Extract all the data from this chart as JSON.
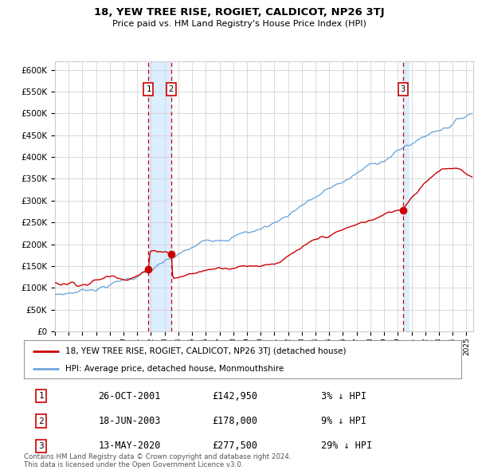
{
  "title": "18, YEW TREE RISE, ROGIET, CALDICOT, NP26 3TJ",
  "subtitle": "Price paid vs. HM Land Registry's House Price Index (HPI)",
  "ylim": [
    0,
    620000
  ],
  "yticks": [
    0,
    50000,
    100000,
    150000,
    200000,
    250000,
    300000,
    350000,
    400000,
    450000,
    500000,
    550000,
    600000
  ],
  "ytick_labels": [
    "£0",
    "£50K",
    "£100K",
    "£150K",
    "£200K",
    "£250K",
    "£300K",
    "£350K",
    "£400K",
    "£450K",
    "£500K",
    "£550K",
    "£600K"
  ],
  "hpi_color": "#6fa8dc",
  "property_color": "#cc0000",
  "sale1_date": 2001.82,
  "sale1_price": 142950,
  "sale2_date": 2003.46,
  "sale2_price": 178000,
  "sale3_date": 2020.37,
  "sale3_price": 277500,
  "legend_property": "18, YEW TREE RISE, ROGIET, CALDICOT, NP26 3TJ (detached house)",
  "legend_hpi": "HPI: Average price, detached house, Monmouthshire",
  "table_rows": [
    [
      "1",
      "26-OCT-2001",
      "£142,950",
      "3% ↓ HPI"
    ],
    [
      "2",
      "18-JUN-2003",
      "£178,000",
      "9% ↓ HPI"
    ],
    [
      "3",
      "13-MAY-2020",
      "£277,500",
      "29% ↓ HPI"
    ]
  ],
  "footnote": "Contains HM Land Registry data © Crown copyright and database right 2024.\nThis data is licensed under the Open Government Licence v3.0.",
  "background_color": "#ffffff",
  "grid_color": "#cccccc",
  "highlight_color": "#ddeeff",
  "vline_color": "#cc0000"
}
